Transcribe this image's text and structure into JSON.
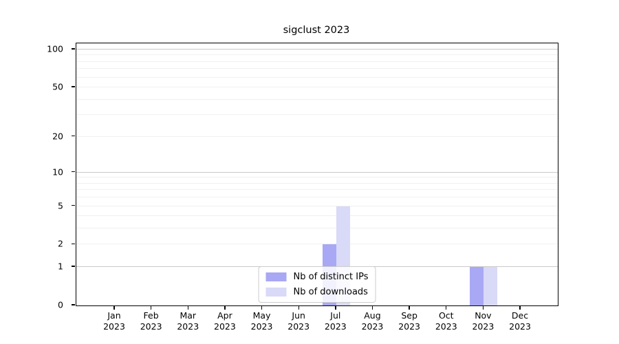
{
  "title": "sigclust 2023",
  "chart_data": {
    "type": "bar",
    "title": "sigclust 2023",
    "categories": [
      "Jan",
      "Feb",
      "Mar",
      "Apr",
      "May",
      "Jun",
      "Jul",
      "Aug",
      "Sep",
      "Oct",
      "Nov",
      "Dec"
    ],
    "category_year": "2023",
    "series": [
      {
        "name": "Nb of distinct IPs",
        "color": "#a8a8f4",
        "values": [
          0,
          0,
          0,
          0,
          0,
          0,
          2,
          0,
          0,
          0,
          1,
          0
        ]
      },
      {
        "name": "Nb of downloads",
        "color": "#d9d9f8",
        "values": [
          0,
          0,
          0,
          0,
          0,
          0,
          5,
          0,
          0,
          0,
          1,
          0
        ]
      }
    ],
    "xlabel": "",
    "ylabel": "",
    "ytick_labels": [
      0,
      1,
      2,
      5,
      10,
      20,
      50,
      100
    ],
    "y_scale": "log10(1+v)",
    "y_top_value": 112,
    "ylim": [
      0,
      112
    ],
    "y_gridlines_major": [
      1,
      10,
      100
    ],
    "y_gridlines_minor": [
      2,
      3,
      4,
      5,
      6,
      7,
      8,
      9,
      20,
      30,
      40,
      50,
      60,
      70,
      80,
      90
    ],
    "grid": true,
    "legend_position": "lower center",
    "colors": {
      "axis": "#000000",
      "grid_major": "#c9c9c9",
      "grid_minor": "#f0f0f0",
      "legend_border": "#cccccc",
      "background": "#ffffff"
    }
  }
}
